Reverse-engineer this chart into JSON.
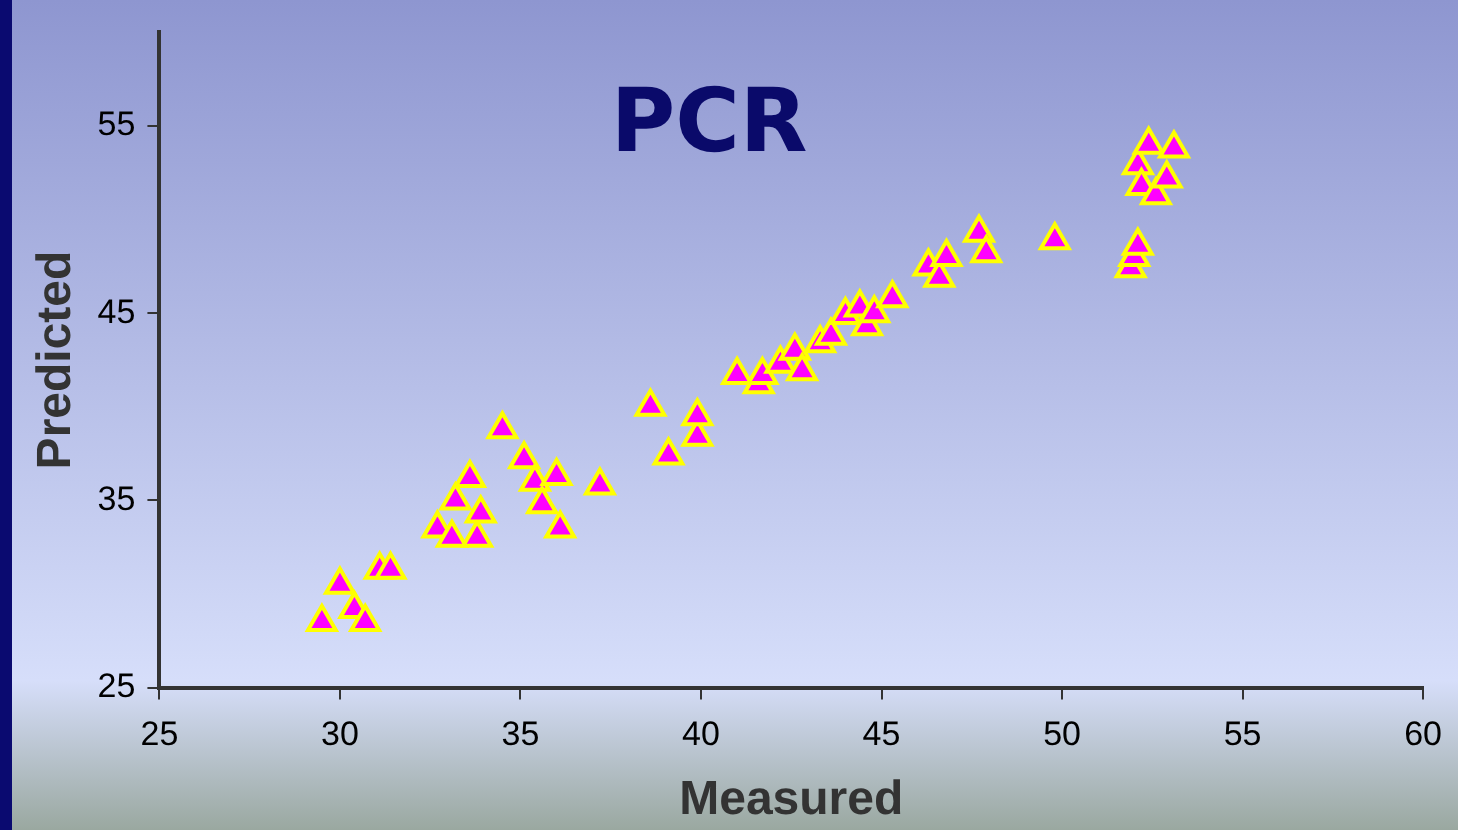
{
  "chart_data": {
    "type": "scatter",
    "title": "PCR",
    "xlabel": "Measured",
    "ylabel": "Predicted",
    "xlim": [
      25,
      60
    ],
    "xticks": [
      25,
      30,
      35,
      40,
      45,
      50,
      55,
      60
    ],
    "ylim": [
      25,
      60
    ],
    "yticks": [
      25,
      35,
      45,
      55
    ],
    "grid": false,
    "legend": false,
    "marker": "triangle",
    "series": [
      {
        "color": "#ff00ff",
        "x": [
          29.5,
          30.0,
          30.4,
          30.7,
          31.1,
          31.4,
          32.7,
          33.1,
          33.2,
          33.6,
          33.8,
          33.9,
          34.5,
          35.1,
          35.4,
          35.6,
          36.0,
          36.1,
          37.2,
          38.6,
          39.1,
          39.9,
          39.9,
          41.0,
          41.6,
          41.7,
          42.2,
          42.6,
          42.8,
          43.3,
          43.6,
          44.0,
          44.4,
          44.6,
          44.8,
          45.3,
          46.3,
          46.6,
          46.8,
          47.7,
          47.9,
          49.8,
          51.9,
          52.0,
          52.1,
          52.1,
          52.2,
          52.4,
          52.6,
          52.9,
          53.1
        ],
        "values": [
          28.5,
          30.5,
          29.2,
          28.5,
          31.3,
          31.3,
          33.5,
          33.0,
          35.0,
          36.2,
          33.0,
          34.3,
          38.8,
          37.2,
          36.0,
          34.8,
          36.3,
          33.5,
          35.8,
          40.0,
          37.4,
          38.4,
          39.5,
          41.7,
          41.2,
          41.7,
          42.3,
          43.0,
          41.9,
          43.4,
          43.8,
          44.9,
          45.3,
          44.3,
          45.0,
          45.8,
          47.5,
          46.9,
          48.0,
          49.3,
          48.2,
          48.9,
          47.4,
          48.0,
          48.6,
          52.9,
          51.8,
          54.0,
          51.3,
          52.2,
          53.8
        ]
      }
    ]
  }
}
